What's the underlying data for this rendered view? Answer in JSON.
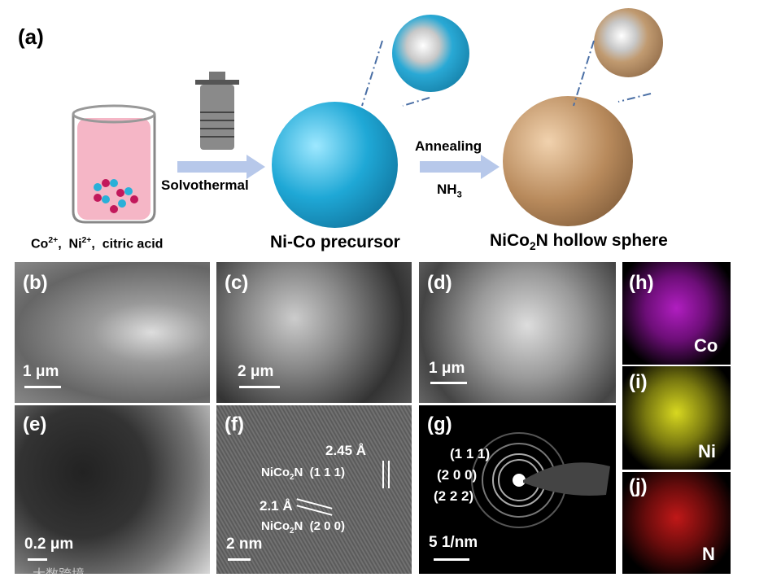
{
  "panel_a": {
    "label": "(a)",
    "step1": "Solvothermal",
    "step2_top": "Annealing",
    "step2_bottom": [
      "NH",
      "3"
    ],
    "reactants": [
      "Co",
      "2+",
      ",  Ni",
      "2+",
      ",  citric acid"
    ],
    "precursor": "Ni-Co precursor",
    "product": [
      "NiCo",
      "2",
      "N hollow sphere"
    ]
  },
  "panel_b": {
    "label": "(b)",
    "scale": "1 μm"
  },
  "panel_c": {
    "label": "(c)",
    "scale": "2 μm"
  },
  "panel_d": {
    "label": "(d)",
    "scale": "1 μm"
  },
  "panel_e": {
    "label": "(e)",
    "scale": "0.2 μm"
  },
  "panel_f": {
    "label": "(f)",
    "scale": "2 nm",
    "spacing_1": "2.45 Å",
    "plane_1": [
      "NiCo",
      "2",
      "N  (1 1 1)"
    ],
    "spacing_2": "2.1 Å",
    "plane_2": [
      "NiCo",
      "2",
      "N  (2 0 0)"
    ]
  },
  "panel_g": {
    "label": "(g)",
    "scale": "5 1/nm",
    "rings": [
      "(1 1 1)",
      "(2 0 0)",
      "(2 2 2)"
    ]
  },
  "panel_h": {
    "label": "(h)",
    "element": "Co"
  },
  "panel_i": {
    "label": "(i)",
    "element": "Ni"
  },
  "panel_j": {
    "label": "(j)",
    "element": "N"
  },
  "watermark": "大数跨境"
}
